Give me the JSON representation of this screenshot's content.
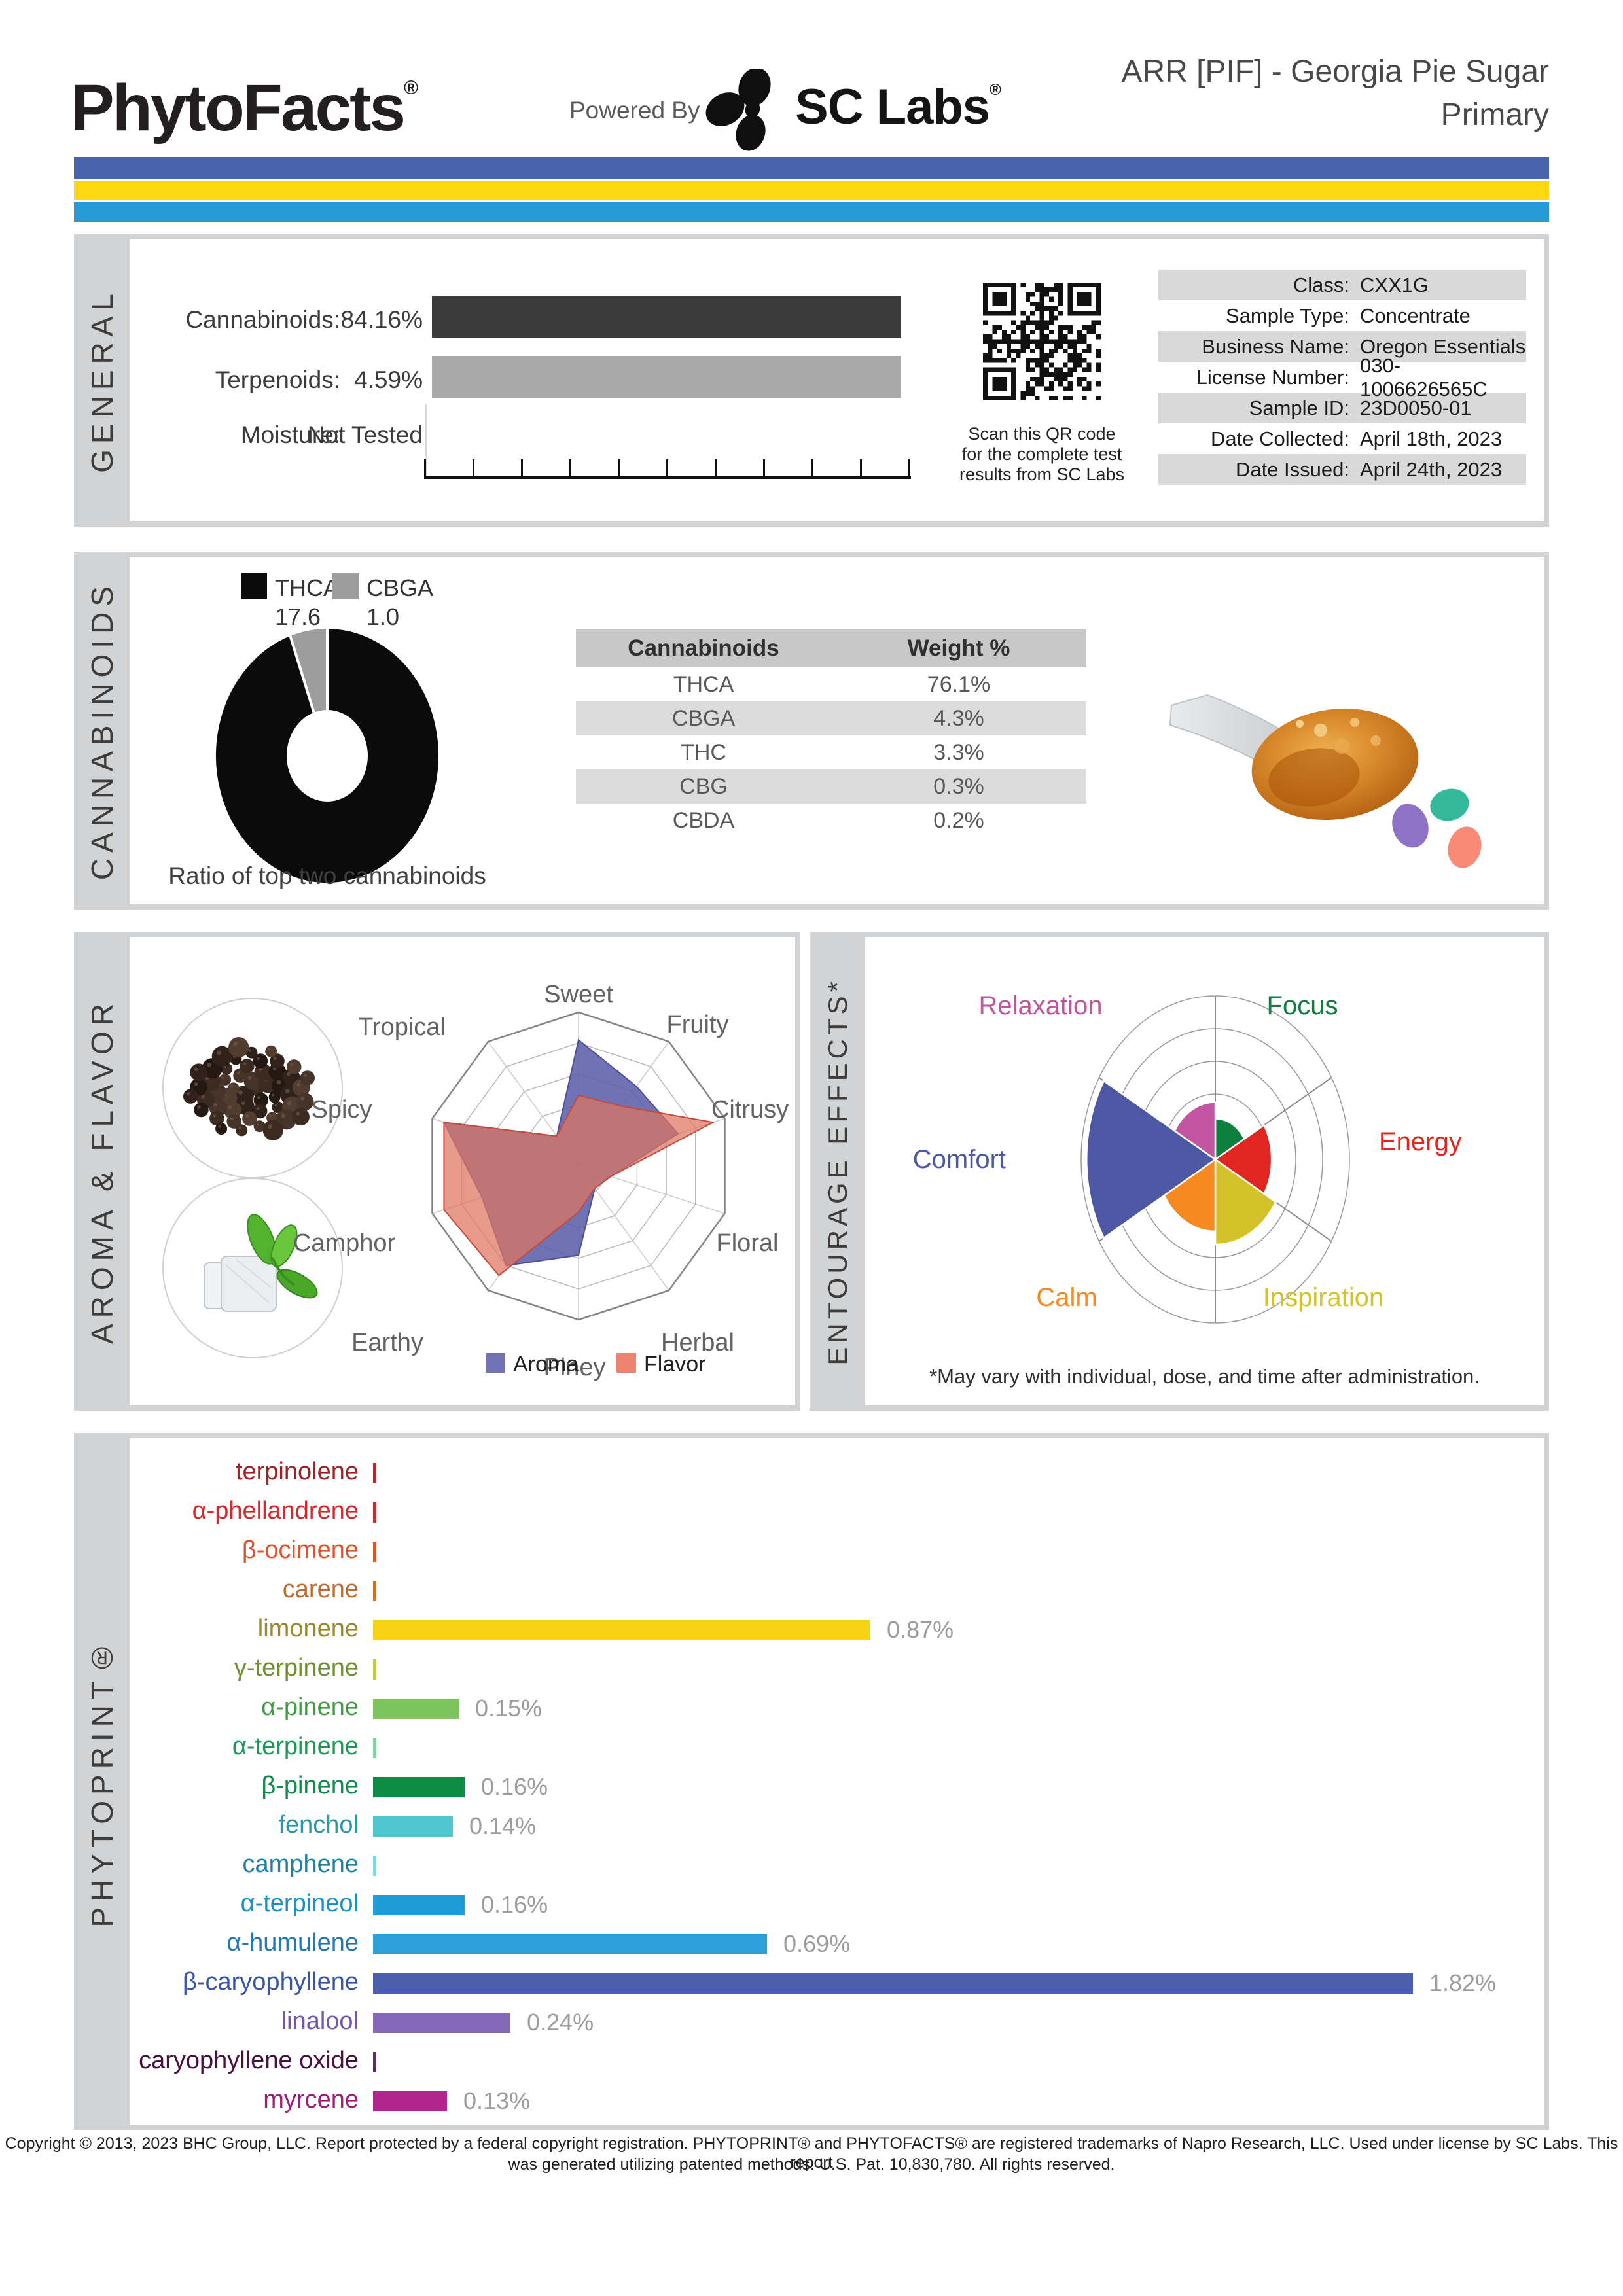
{
  "header": {
    "logo": "PhytoFacts",
    "logo_reg": "®",
    "powered_by": "Powered By",
    "sclabs": "SC Labs",
    "sclabs_reg": "®",
    "title_line1": "ARR [PIF] - Georgia Pie Sugar",
    "title_line2": "Primary",
    "stripe_colors": [
      "#4a63ad",
      "#fbd80f",
      "#259cd6"
    ]
  },
  "general": {
    "section_label": "GENERAL",
    "metrics": [
      {
        "label": "Cannabinoids:",
        "value": "84.16%",
        "bar_color": "#3b3b3b"
      },
      {
        "label": "Terpenoids:",
        "value": "4.59%",
        "bar_color": "#a9a9a9"
      },
      {
        "label": "Moisture:",
        "value": "Not Tested",
        "bar_color": ""
      }
    ],
    "qr_caption": [
      "Scan this QR code",
      "for the complete test",
      "results from SC Labs"
    ],
    "info_rows": [
      {
        "label": "Class:",
        "value": "CXX1G"
      },
      {
        "label": "Sample Type:",
        "value": "Concentrate"
      },
      {
        "label": "Business Name:",
        "value": "Oregon Essentials"
      },
      {
        "label": "License Number:",
        "value": "030-1006626565C"
      },
      {
        "label": "Sample ID:",
        "value": "23D0050-01"
      },
      {
        "label": "Date Collected:",
        "value": "April 18th, 2023"
      },
      {
        "label": "Date Issued:",
        "value": "April 24th, 2023"
      }
    ]
  },
  "cannabinoids": {
    "section_label": "CANNABINOIDS",
    "donut": {
      "legend": [
        {
          "name": "THCA",
          "value": "17.6",
          "color": "#0b0b0b"
        },
        {
          "name": "CBGA",
          "value": "1.0",
          "color": "#9d9d9d"
        }
      ],
      "values": [
        17.6,
        1.0
      ],
      "caption": "Ratio of top two cannabinoids"
    },
    "table": {
      "headers": [
        "Cannabinoids",
        "Weight %"
      ],
      "rows": [
        [
          "THCA",
          "76.1%"
        ],
        [
          "CBGA",
          "4.3%"
        ],
        [
          "THC",
          "3.3%"
        ],
        [
          "CBG",
          "0.3%"
        ],
        [
          "CBDA",
          "0.2%"
        ]
      ]
    }
  },
  "aroma_flavor": {
    "section_label": "AROMA & FLAVOR",
    "axes": [
      "Sweet",
      "Fruity",
      "Citrusy",
      "Floral",
      "Herbal",
      "Piney",
      "Earthy",
      "Camphor",
      "Spicy",
      "Tropical"
    ],
    "max": 5,
    "series": [
      {
        "name": "Aroma",
        "color": "#5c60a8",
        "values": [
          4.1,
          3.2,
          3.4,
          1.1,
          0.9,
          2.9,
          4.0,
          3.3,
          4.6,
          1.2
        ]
      },
      {
        "name": "Flavor",
        "color": "#e0745e",
        "values": [
          2.3,
          2.4,
          4.6,
          1.1,
          0.9,
          1.5,
          4.4,
          4.6,
          4.6,
          1.2
        ]
      }
    ]
  },
  "entourage": {
    "section_label": "ENTOURAGE EFFECTS*",
    "max": 5,
    "sectors": [
      {
        "label": "Focus",
        "color": "#0d7f3f",
        "value": 1.25
      },
      {
        "label": "Energy",
        "color": "#e12520",
        "value": 2.1
      },
      {
        "label": "Inspiration",
        "color": "#d4c22b",
        "value": 2.6
      },
      {
        "label": "Calm",
        "color": "#f6891f",
        "value": 2.2
      },
      {
        "label": "Comfort",
        "color": "#4d58a4",
        "value": 4.8
      },
      {
        "label": "Relaxation",
        "color": "#c2559f",
        "value": 1.75
      }
    ],
    "footnote": "*May vary with individual, dose, and time after administration."
  },
  "phytoprint": {
    "section_label": "PHYTOPRINT®",
    "terpenes": [
      {
        "name": "terpinolene",
        "label_color": "#a32025",
        "bar_color": "#b3272d",
        "value": 0,
        "display": ""
      },
      {
        "name": "α-phellandrene",
        "label_color": "#d7282e",
        "bar_color": "#d7282e",
        "value": 0,
        "display": ""
      },
      {
        "name": "β-ocimene",
        "label_color": "#e1512b",
        "bar_color": "#e1512b",
        "value": 0,
        "display": ""
      },
      {
        "name": "carene",
        "label_color": "#c06a2b",
        "bar_color": "#d3702c",
        "value": 0,
        "display": ""
      },
      {
        "name": "limonene",
        "label_color": "#9c8a26",
        "bar_color": "#f8d214",
        "value": 0.87,
        "display": "0.87%"
      },
      {
        "name": "γ-terpinene",
        "label_color": "#70902f",
        "bar_color": "#b5cf4a",
        "value": 0,
        "display": ""
      },
      {
        "name": "α-pinene",
        "label_color": "#3f9c41",
        "bar_color": "#7ec45e",
        "value": 0.15,
        "display": "0.15%"
      },
      {
        "name": "α-terpinene",
        "label_color": "#1f9757",
        "bar_color": "#7fd19a",
        "value": 0,
        "display": ""
      },
      {
        "name": "β-pinene",
        "label_color": "#108a4d",
        "bar_color": "#0d8c45",
        "value": 0.16,
        "display": "0.16%"
      },
      {
        "name": "fenchol",
        "label_color": "#2b97a9",
        "bar_color": "#4fc6d0",
        "value": 0.14,
        "display": "0.14%"
      },
      {
        "name": "camphene",
        "label_color": "#1f7f9f",
        "bar_color": "#7fd4e8",
        "value": 0,
        "display": ""
      },
      {
        "name": "α-terpineol",
        "label_color": "#1e90c8",
        "bar_color": "#219bd8",
        "value": 0.16,
        "display": "0.16%"
      },
      {
        "name": "α-humulene",
        "label_color": "#2379b8",
        "bar_color": "#2e9fd8",
        "value": 0.69,
        "display": "0.69%"
      },
      {
        "name": "β-caryophyllene",
        "label_color": "#3a55a5",
        "bar_color": "#4a5fae",
        "value": 1.82,
        "display": "1.82%"
      },
      {
        "name": "linalool",
        "label_color": "#7456ab",
        "bar_color": "#8568b8",
        "value": 0.24,
        "display": "0.24%"
      },
      {
        "name": "caryophyllene oxide",
        "label_color": "#4a1040",
        "bar_color": "#5a2d5a",
        "value": 0,
        "display": ""
      },
      {
        "name": "myrcene",
        "label_color": "#a01d75",
        "bar_color": "#b0268c",
        "value": 0.13,
        "display": "0.13%"
      }
    ]
  },
  "footer": {
    "line1": "Copyright © 2013, 2023 BHC Group, LLC. Report protected by a federal copyright registration. PHYTOPRINT® and PHYTOFACTS® are registered trademarks of Napro Research, LLC. Used under license by SC Labs. This report",
    "line2": "was generated utilizing patented methods. U.S. Pat. 10,830,780. All rights reserved."
  },
  "chart_data": [
    {
      "type": "pie",
      "title": "Ratio of top two cannabinoids",
      "categories": [
        "THCA",
        "CBGA"
      ],
      "values": [
        17.6,
        1.0
      ],
      "colors": [
        "#0b0b0b",
        "#9d9d9d"
      ]
    },
    {
      "type": "table",
      "title": "Cannabinoids Weight %",
      "categories": [
        "THCA",
        "CBGA",
        "THC",
        "CBG",
        "CBDA"
      ],
      "values": [
        76.1,
        4.3,
        3.3,
        0.3,
        0.2
      ]
    },
    {
      "type": "radar",
      "title": "Aroma & Flavor",
      "categories": [
        "Sweet",
        "Fruity",
        "Citrusy",
        "Floral",
        "Herbal",
        "Piney",
        "Earthy",
        "Camphor",
        "Spicy",
        "Tropical"
      ],
      "series": [
        {
          "name": "Aroma",
          "values": [
            4.1,
            3.2,
            3.4,
            1.1,
            0.9,
            2.9,
            4.0,
            3.3,
            4.6,
            1.2
          ]
        },
        {
          "name": "Flavor",
          "values": [
            2.3,
            2.4,
            4.6,
            1.1,
            0.9,
            1.5,
            4.4,
            4.6,
            4.6,
            1.2
          ]
        }
      ],
      "ylim": [
        0,
        5
      ],
      "legend_position": "bottom"
    },
    {
      "type": "rose",
      "title": "Entourage Effects",
      "categories": [
        "Focus",
        "Energy",
        "Inspiration",
        "Calm",
        "Comfort",
        "Relaxation"
      ],
      "values": [
        1.25,
        2.1,
        2.6,
        2.2,
        4.8,
        1.75
      ],
      "ylim": [
        0,
        5
      ]
    },
    {
      "type": "bar",
      "title": "PHYTOPRINT terpenes (%)",
      "categories": [
        "terpinolene",
        "α-phellandrene",
        "β-ocimene",
        "carene",
        "limonene",
        "γ-terpinene",
        "α-pinene",
        "α-terpinene",
        "β-pinene",
        "fenchol",
        "camphene",
        "α-terpineol",
        "α-humulene",
        "β-caryophyllene",
        "linalool",
        "caryophyllene oxide",
        "myrcene"
      ],
      "values": [
        0,
        0,
        0,
        0,
        0.87,
        0,
        0.15,
        0,
        0.16,
        0.14,
        0,
        0.16,
        0.69,
        1.82,
        0.24,
        0,
        0.13
      ],
      "xlim": [
        0,
        2.0
      ]
    }
  ]
}
